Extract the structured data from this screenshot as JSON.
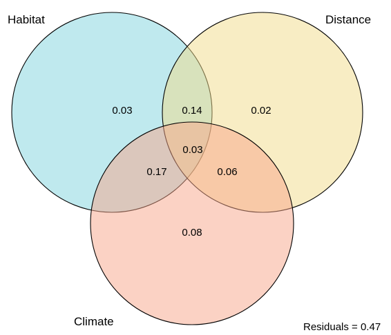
{
  "sets": [
    {
      "id": "habitat",
      "label": "Habitat",
      "color": "#7fd3dd"
    },
    {
      "id": "distance",
      "label": "Distance",
      "color": "#f2dc8a"
    },
    {
      "id": "climate",
      "label": "Climate",
      "color": "#f7a58a"
    }
  ],
  "regions": {
    "habitat_only": "0.03",
    "distance_only": "0.02",
    "climate_only": "0.08",
    "habitat_distance": "0.14",
    "habitat_climate": "0.17",
    "distance_climate": "0.06",
    "all_three": "0.03"
  },
  "residuals": "Residuals = 0.47"
}
